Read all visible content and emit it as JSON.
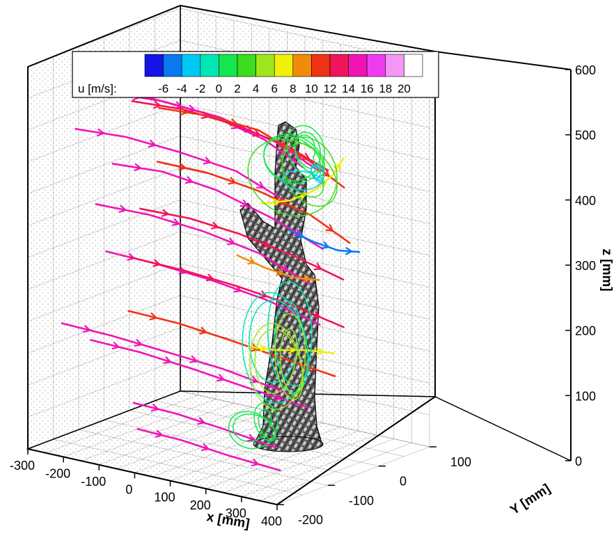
{
  "chart_data": {
    "type": "3d-streamline",
    "axes": {
      "x": {
        "label": "x [mm]",
        "range": [
          -300,
          400
        ],
        "ticks": [
          -300,
          -200,
          -100,
          0,
          100,
          200,
          300,
          400
        ]
      },
      "y": {
        "label": "Y [mm]",
        "range": [
          -200,
          100
        ],
        "ticks": [
          -200,
          -100,
          0,
          100
        ]
      },
      "z": {
        "label": "z [mm]",
        "range": [
          0,
          600
        ],
        "ticks": [
          0,
          100,
          200,
          300,
          400,
          500,
          600
        ]
      }
    },
    "grid": true,
    "colorbar": {
      "label": "u [m/s]:",
      "placement": "top-left",
      "ticks": [
        -6,
        -4,
        -2,
        0,
        2,
        4,
        6,
        8,
        10,
        12,
        14,
        16,
        18,
        20
      ],
      "colors": [
        "#1414e6",
        "#0a78f0",
        "#00c8f5",
        "#00e6b4",
        "#14e650",
        "#3cdc1e",
        "#a0e61e",
        "#f0f00a",
        "#f08c0a",
        "#f03214",
        "#f0145a",
        "#f014b4",
        "#f03cf0",
        "#f596f5",
        "#ffffff"
      ]
    },
    "streamlines": [
      {
        "color": "#f014b4",
        "points": [
          [
            -260,
            -100,
            540
          ],
          [
            -100,
            -100,
            545
          ],
          [
            60,
            -100,
            540
          ],
          [
            220,
            -100,
            520
          ],
          [
            330,
            -100,
            490
          ]
        ]
      },
      {
        "color": "#f014b4",
        "points": [
          [
            -270,
            -60,
            520
          ],
          [
            -120,
            -60,
            525
          ],
          [
            40,
            -60,
            520
          ],
          [
            200,
            -60,
            500
          ],
          [
            320,
            -60,
            470
          ]
        ]
      },
      {
        "color": "#f0145a",
        "points": [
          [
            -250,
            -30,
            500
          ],
          [
            -110,
            -30,
            505
          ],
          [
            20,
            -30,
            500
          ],
          [
            180,
            -30,
            485
          ],
          [
            300,
            -30,
            460
          ]
        ]
      },
      {
        "color": "#f014b4",
        "points": [
          [
            -280,
            -120,
            480
          ],
          [
            -140,
            -120,
            485
          ],
          [
            10,
            -120,
            480
          ],
          [
            170,
            -120,
            470
          ],
          [
            310,
            -120,
            440
          ]
        ]
      },
      {
        "color": "#f03214",
        "points": [
          [
            -260,
            30,
            470
          ],
          [
            -120,
            30,
            475
          ],
          [
            20,
            30,
            470
          ],
          [
            160,
            30,
            440
          ],
          [
            260,
            30,
            410
          ]
        ]
      },
      {
        "color": "#f014b4",
        "points": [
          [
            -290,
            -40,
            400
          ],
          [
            -150,
            -40,
            405
          ],
          [
            0,
            -40,
            395
          ],
          [
            160,
            -40,
            370
          ],
          [
            300,
            -40,
            340
          ]
        ]
      },
      {
        "color": "#f03214",
        "points": [
          [
            -250,
            20,
            390
          ],
          [
            -110,
            20,
            390
          ],
          [
            30,
            20,
            380
          ],
          [
            180,
            20,
            360
          ],
          [
            290,
            20,
            330
          ]
        ]
      },
      {
        "color": "#f014b4",
        "points": [
          [
            -280,
            -80,
            350
          ],
          [
            -130,
            -80,
            352
          ],
          [
            20,
            -80,
            345
          ],
          [
            180,
            -80,
            330
          ],
          [
            320,
            -80,
            300
          ]
        ]
      },
      {
        "color": "#f0145a",
        "points": [
          [
            -270,
            0,
            320
          ],
          [
            -130,
            0,
            322
          ],
          [
            10,
            0,
            315
          ],
          [
            160,
            0,
            300
          ],
          [
            300,
            0,
            280
          ]
        ]
      },
      {
        "color": "#f014b4",
        "points": [
          [
            -280,
            -60,
            270
          ],
          [
            -140,
            -60,
            268
          ],
          [
            10,
            -60,
            262
          ],
          [
            170,
            -60,
            250
          ],
          [
            320,
            -60,
            230
          ]
        ]
      },
      {
        "color": "#f0145a",
        "points": [
          [
            -270,
            -20,
            250
          ],
          [
            -120,
            -20,
            248
          ],
          [
            30,
            -20,
            242
          ],
          [
            180,
            -20,
            232
          ],
          [
            330,
            -20,
            215
          ]
        ]
      },
      {
        "color": "#f014b4",
        "points": [
          [
            -290,
            -140,
            180
          ],
          [
            -150,
            -140,
            178
          ],
          [
            0,
            -140,
            172
          ],
          [
            160,
            -140,
            165
          ],
          [
            340,
            -140,
            150
          ]
        ]
      },
      {
        "color": "#f03214",
        "points": [
          [
            -260,
            -30,
            170
          ],
          [
            -120,
            -30,
            168
          ],
          [
            20,
            -30,
            160
          ],
          [
            170,
            -30,
            150
          ],
          [
            320,
            -30,
            140
          ]
        ]
      },
      {
        "color": "#f014b4",
        "points": [
          [
            -280,
            -90,
            140
          ],
          [
            -140,
            -90,
            138
          ],
          [
            10,
            -90,
            130
          ],
          [
            160,
            -90,
            120
          ],
          [
            330,
            -90,
            110
          ]
        ]
      },
      {
        "color": "#f014b4",
        "points": [
          [
            -60,
            -160,
            90
          ],
          [
            60,
            -160,
            88
          ],
          [
            200,
            -160,
            80
          ],
          [
            340,
            -160,
            70
          ]
        ]
      },
      {
        "color": "#f014b4",
        "points": [
          [
            -20,
            -180,
            60
          ],
          [
            100,
            -180,
            58
          ],
          [
            240,
            -180,
            50
          ],
          [
            380,
            -180,
            45
          ]
        ]
      },
      {
        "color": "#f0f00a",
        "points": [
          [
            100,
            -20,
            380
          ],
          [
            180,
            -20,
            395
          ],
          [
            250,
            -20,
            420
          ],
          [
            300,
            -20,
            450
          ],
          [
            330,
            -20,
            480
          ]
        ]
      },
      {
        "color": "#f0f00a",
        "points": [
          [
            120,
            -60,
            170
          ],
          [
            200,
            -60,
            175
          ],
          [
            280,
            -60,
            185
          ],
          [
            360,
            -60,
            190
          ]
        ]
      },
      {
        "color": "#0a78f0",
        "points": [
          [
            60,
            60,
            310
          ],
          [
            130,
            60,
            300
          ],
          [
            200,
            60,
            295
          ],
          [
            260,
            60,
            300
          ]
        ]
      },
      {
        "color": "#f08c0a",
        "points": [
          [
            60,
            -40,
            300
          ],
          [
            140,
            -40,
            290
          ],
          [
            220,
            -40,
            285
          ],
          [
            290,
            -40,
            290
          ]
        ]
      }
    ],
    "vortices": [
      {
        "color": "#14e650",
        "center": [
          120,
          40,
          440
        ],
        "rx": 70,
        "rz": 40,
        "turns": 5
      },
      {
        "color": "#3cdc1e",
        "center": [
          150,
          20,
          420
        ],
        "rx": 110,
        "rz": 60,
        "turns": 3
      },
      {
        "color": "#00c8f5",
        "center": [
          120,
          60,
          400
        ],
        "rx": 40,
        "rz": 15,
        "turns": 3
      },
      {
        "color": "#00e6b4",
        "center": [
          130,
          0,
          160
        ],
        "rx": 80,
        "rz": 90,
        "turns": 4
      },
      {
        "color": "#a0e61e",
        "center": [
          160,
          -20,
          140
        ],
        "rx": 60,
        "rz": 70,
        "turns": 4
      },
      {
        "color": "#14e650",
        "center": [
          120,
          -40,
          40
        ],
        "rx": 50,
        "rz": 30,
        "turns": 4
      }
    ]
  }
}
